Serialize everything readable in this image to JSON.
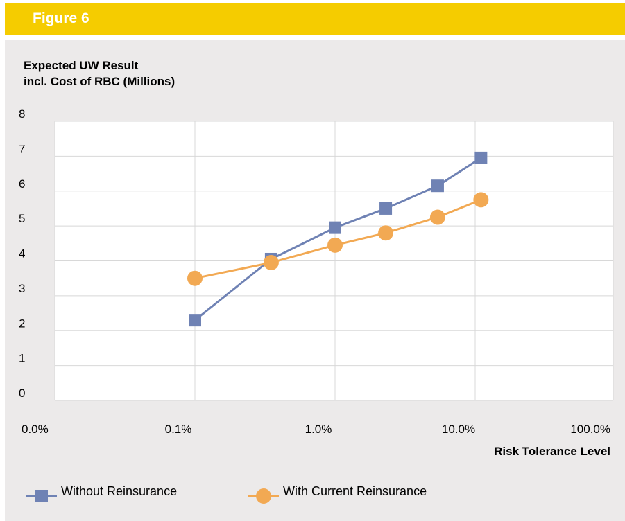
{
  "header": {
    "title": "Figure 6"
  },
  "chart_data": {
    "type": "line",
    "ylabel_lines": [
      "Expected UW Result",
      "incl. Cost of RBC (Millions)"
    ],
    "xlabel": "Risk Tolerance Level",
    "x_scale": "log",
    "x_ticks": [
      "0.0%",
      "0.1%",
      "1.0%",
      "10.0%",
      "100.0%"
    ],
    "y_ticks": [
      "0",
      "1",
      "2",
      "3",
      "4",
      "5",
      "6",
      "7",
      "8"
    ],
    "ylim": [
      0,
      8
    ],
    "grid": true,
    "legend_position": "bottom",
    "series": [
      {
        "name": "Without Reinsurance",
        "color": "#6f82b4",
        "marker": "square",
        "x": [
          0.1,
          0.35,
          1.0,
          2.3,
          5.4,
          11.0
        ],
        "y": [
          2.3,
          4.05,
          4.95,
          5.5,
          6.15,
          6.95
        ]
      },
      {
        "name": "With Current Reinsurance",
        "color": "#f2a953",
        "marker": "circle",
        "x": [
          0.1,
          0.35,
          1.0,
          2.3,
          5.4,
          11.0
        ],
        "y": [
          3.5,
          3.95,
          4.45,
          4.8,
          5.25,
          5.75
        ]
      }
    ]
  }
}
